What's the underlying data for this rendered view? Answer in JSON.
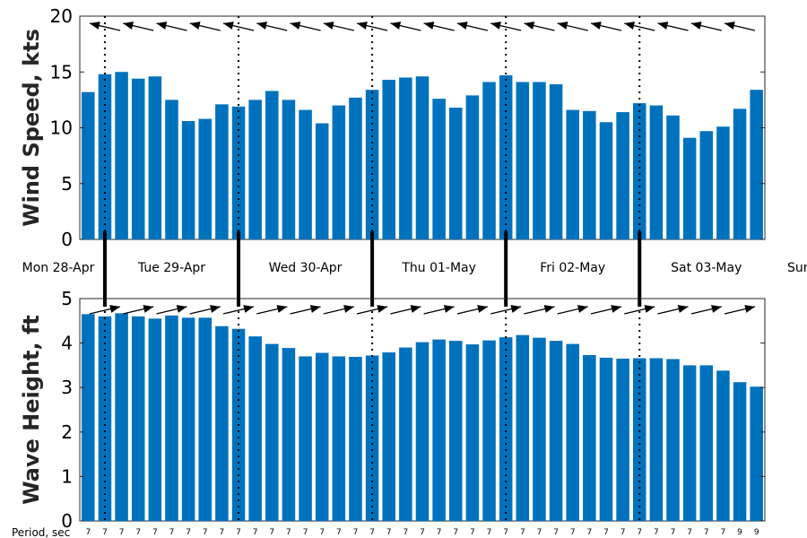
{
  "chart_data": [
    {
      "type": "bar",
      "panel": "wind",
      "ylabel": "Wind Speed, kts",
      "ylim": [
        0,
        20
      ],
      "yticks": [
        "0",
        "5",
        "10",
        "15",
        "20"
      ],
      "bar_color": "#0072BD",
      "values": [
        13.2,
        14.8,
        15.0,
        14.4,
        14.6,
        12.5,
        10.6,
        10.8,
        12.1,
        11.9,
        12.5,
        13.3,
        12.5,
        11.6,
        10.4,
        12.0,
        12.7,
        13.4,
        14.3,
        14.5,
        14.6,
        12.6,
        11.8,
        12.9,
        14.1,
        14.7,
        14.1,
        14.1,
        13.9,
        11.6,
        11.5,
        10.5,
        11.4,
        12.2,
        12.0,
        11.1,
        9.1,
        9.7,
        10.1,
        11.7,
        13.4
      ],
      "direction_arrows": "westward (pointing left, slightly upward)"
    },
    {
      "type": "bar",
      "panel": "wave",
      "ylabel": "Wave Height, ft",
      "ylim": [
        0,
        5
      ],
      "yticks": [
        "0",
        "1",
        "2",
        "3",
        "4",
        "5"
      ],
      "bar_color": "#0072BD",
      "values": [
        4.65,
        4.6,
        4.67,
        4.6,
        4.55,
        4.62,
        4.57,
        4.57,
        4.38,
        4.32,
        4.15,
        3.98,
        3.89,
        3.7,
        3.78,
        3.7,
        3.69,
        3.72,
        3.79,
        3.9,
        4.02,
        4.08,
        4.05,
        3.97,
        4.06,
        4.13,
        4.18,
        4.12,
        4.05,
        3.98,
        3.73,
        3.67,
        3.65,
        3.66,
        3.66,
        3.64,
        3.5,
        3.5,
        3.38,
        3.12,
        3.02
      ],
      "direction_arrows": "eastward (pointing right, slightly upward)"
    }
  ],
  "days": [
    "Mon 28-Apr",
    "Tue 29-Apr",
    "Wed 30-Apr",
    "Thu 01-May",
    "Fri 02-May",
    "Sat 03-May",
    "Sun"
  ],
  "period_label": "Period, sec",
  "periods": [
    "7",
    "7",
    "7",
    "7",
    "7",
    "7",
    "7",
    "7",
    "7",
    "7",
    "7",
    "7",
    "7",
    "7",
    "7",
    "7",
    "7",
    "7",
    "7",
    "7",
    "7",
    "7",
    "7",
    "7",
    "7",
    "7",
    "7",
    "7",
    "7",
    "7",
    "7",
    "7",
    "7",
    "7",
    "7",
    "7",
    "7",
    "7",
    "7",
    "9",
    "9"
  ]
}
